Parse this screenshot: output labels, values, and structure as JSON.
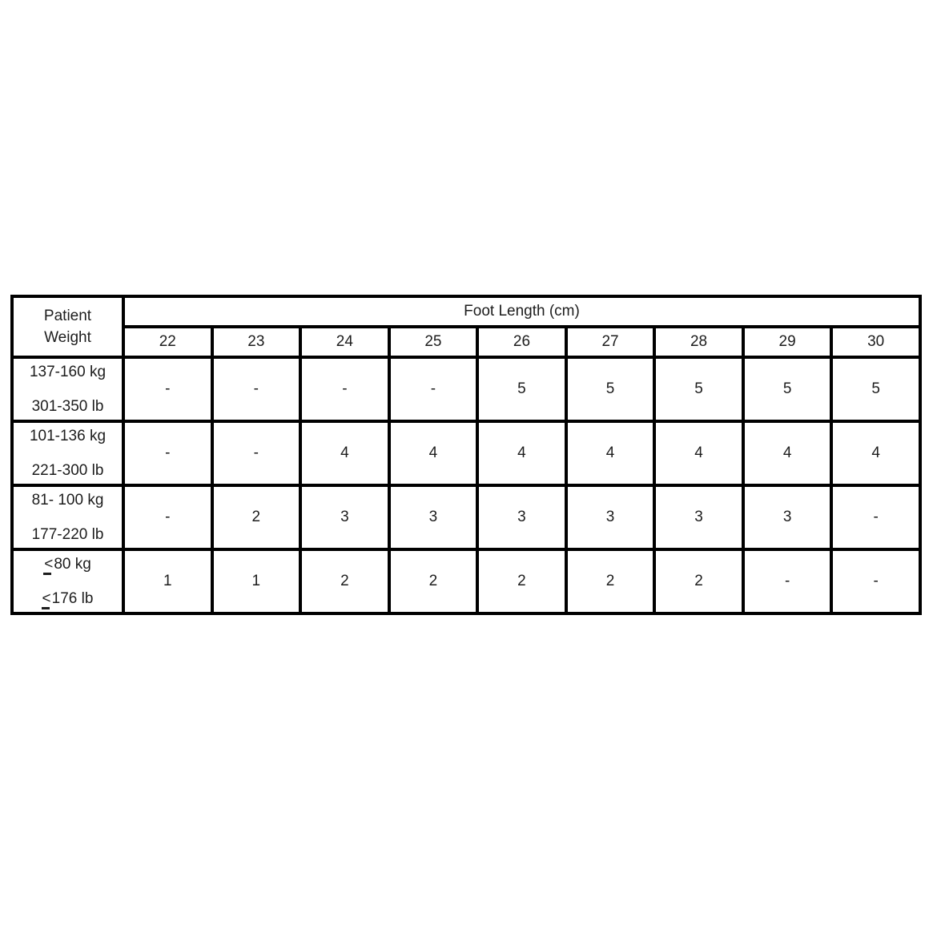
{
  "table": {
    "corner_header": {
      "line1": "Patient",
      "line2": "Weight"
    },
    "group_header": "Foot Length (cm)",
    "columns": [
      "22",
      "23",
      "24",
      "25",
      "26",
      "27",
      "28",
      "29",
      "30"
    ],
    "rows": [
      {
        "label_line1": "137-160 kg",
        "label_line2": "301-350 lb",
        "values": [
          "-",
          "-",
          "-",
          "-",
          "5",
          "5",
          "5",
          "5",
          "5"
        ]
      },
      {
        "label_line1": "101-136 kg",
        "label_line2": "221-300 lb",
        "values": [
          "-",
          "-",
          "4",
          "4",
          "4",
          "4",
          "4",
          "4",
          "4"
        ]
      },
      {
        "label_line1": "81- 100 kg",
        "label_line2": "177-220 lb",
        "values": [
          "-",
          "2",
          "3",
          "3",
          "3",
          "3",
          "3",
          "3",
          "-"
        ]
      },
      {
        "label_line1": "≤80 kg",
        "label_line2": "≤176 lb",
        "values": [
          "1",
          "1",
          "2",
          "2",
          "2",
          "2",
          "2",
          "-",
          "-"
        ]
      }
    ],
    "colors": {
      "border": "#000000",
      "text": "#1d1d1d",
      "background": "#ffffff"
    }
  }
}
